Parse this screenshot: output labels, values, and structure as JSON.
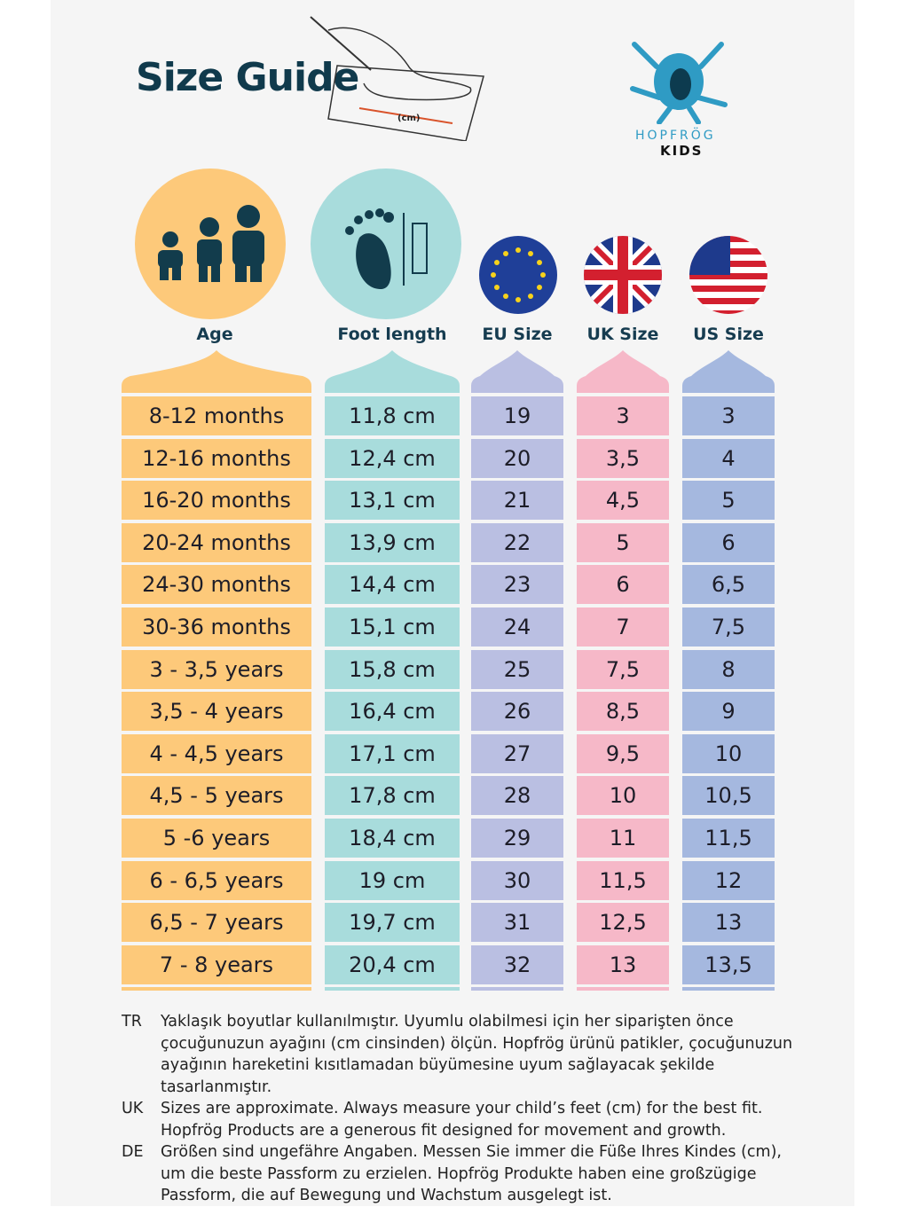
{
  "title": "Size Guide",
  "illustration_label": "(cm)",
  "logo": {
    "brand": "HOPFRÖG",
    "sub": "KIDS"
  },
  "colors": {
    "age": "#fdc97a",
    "foot": "#a8dcdc",
    "eu": "#babfe2",
    "uk": "#f6b8c8",
    "us": "#a5b8df",
    "title": "#103a4c"
  },
  "columns": [
    {
      "key": "age",
      "label": "Age",
      "icon": "children-icon"
    },
    {
      "key": "foot",
      "label": "Foot length",
      "icon": "foot-ruler-icon"
    },
    {
      "key": "eu",
      "label": "EU Size",
      "icon": "eu-flag-icon"
    },
    {
      "key": "uk",
      "label": "UK Size",
      "icon": "uk-flag-icon"
    },
    {
      "key": "us",
      "label": "US Size",
      "icon": "us-flag-icon"
    }
  ],
  "rows": [
    [
      "8-12 months",
      "11,8 cm",
      "19",
      "3",
      "3"
    ],
    [
      "12-16 months",
      "12,4 cm",
      "20",
      "3,5",
      "4"
    ],
    [
      "16-20 months",
      "13,1 cm",
      "21",
      "4,5",
      "5"
    ],
    [
      "20-24 months",
      "13,9 cm",
      "22",
      "5",
      "6"
    ],
    [
      "24-30 months",
      "14,4 cm",
      "23",
      "6",
      "6,5"
    ],
    [
      "30-36 months",
      "15,1 cm",
      "24",
      "7",
      "7,5"
    ],
    [
      "3 - 3,5 years",
      "15,8 cm",
      "25",
      "7,5",
      "8"
    ],
    [
      "3,5 - 4 years",
      "16,4 cm",
      "26",
      "8,5",
      "9"
    ],
    [
      "4 - 4,5 years",
      "17,1 cm",
      "27",
      "9,5",
      "10"
    ],
    [
      "4,5 - 5 years",
      "17,8 cm",
      "28",
      "10",
      "10,5"
    ],
    [
      "5 -6 years",
      "18,4 cm",
      "29",
      "11",
      "11,5"
    ],
    [
      "6 - 6,5 years",
      "19 cm",
      "30",
      "11,5",
      "12"
    ],
    [
      "6,5 - 7 years",
      "19,7 cm",
      "31",
      "12,5",
      "13"
    ],
    [
      "7 - 8 years",
      "20,4 cm",
      "32",
      "13",
      "13,5"
    ]
  ],
  "notes": [
    {
      "code": "TR",
      "text": "Yaklaşık boyutlar kullanılmıştır. Uyumlu olabilmesi için her siparişten önce çocuğunuzun ayağını (cm cinsinden) ölçün. Hopfrög ürünü patikler, çocuğunuzun ayağının hareketini kısıtlamadan büyümesine uyum sağlayacak şekilde tasarlanmıştır."
    },
    {
      "code": "UK",
      "text": "Sizes are approximate. Always measure your child’s feet (cm) for the best fit. Hopfrög Products are a generous fit designed for movement and growth."
    },
    {
      "code": "DE",
      "text": "Größen sind ungefähre Angaben. Messen Sie immer die Füße Ihres Kindes (cm), um die beste Passform zu erzielen. Hopfrög Produkte haben eine großzügige Passform, die auf Bewegung und Wachstum ausgelegt ist."
    }
  ]
}
